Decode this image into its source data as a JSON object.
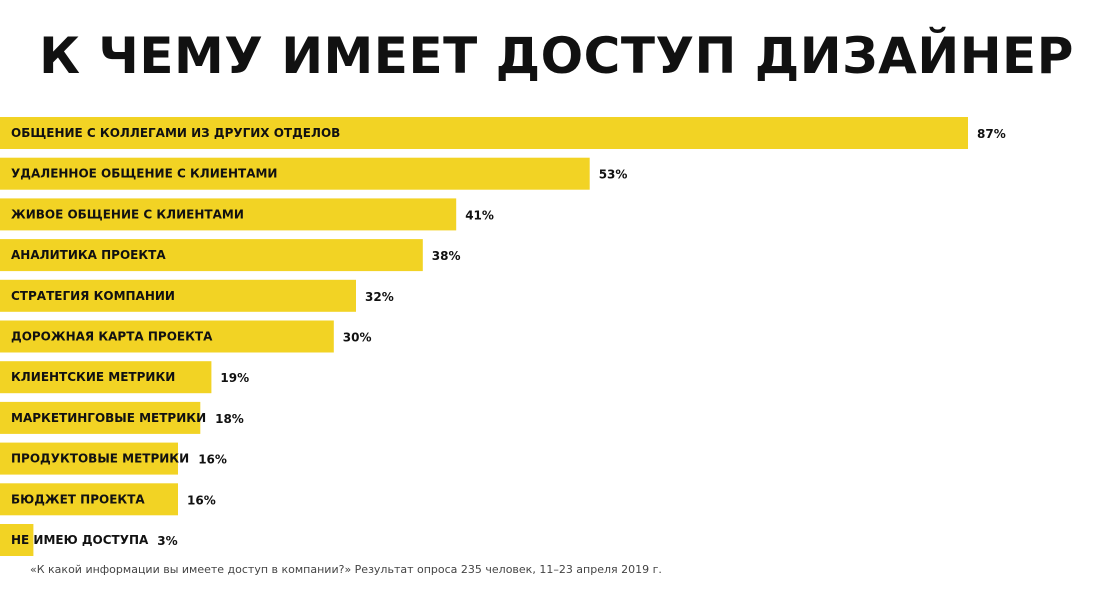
{
  "chart_data": {
    "type": "bar",
    "orientation": "horizontal",
    "title": "К ЧЕМУ ИМЕЕТ ДОСТУП ДИЗАЙНЕР",
    "categories": [
      "ОБЩЕНИЕ С КОЛЛЕГАМИ ИЗ ДРУГИХ ОТДЕЛОВ",
      "УДАЛЕННОЕ ОБЩЕНИЕ С КЛИЕНТАМИ",
      "ЖИВОЕ ОБЩЕНИЕ С КЛИЕНТАМИ",
      "АНАЛИТИКА ПРОЕКТА",
      "СТРАТЕГИЯ КОМПАНИИ",
      "ДОРОЖНАЯ КАРТА ПРОЕКТА",
      "КЛИЕНТСКИЕ МЕТРИКИ",
      "МАРКЕТИНГОВЫЕ МЕТРИКИ",
      "ПРОДУКТОВЫЕ МЕТРИКИ",
      "БЮДЖЕТ ПРОЕКТА",
      "НЕ ИМЕЮ ДОСТУПА"
    ],
    "values": [
      87,
      53,
      41,
      38,
      32,
      30,
      19,
      18,
      16,
      16,
      3
    ],
    "value_labels": [
      "87%",
      "53%",
      "41%",
      "38%",
      "32%",
      "30%",
      "19%",
      "18%",
      "16%",
      "16%",
      "3%"
    ],
    "unit": "%",
    "xlim": [
      0,
      100
    ],
    "xlabel": "",
    "ylabel": "",
    "grid": false,
    "legend": "none"
  },
  "colors": {
    "bar": "#F2D324",
    "text": "#111111",
    "footnote": "#444444"
  },
  "footnote": "«К какой информации вы имеете доступ в компании?» Результат опроса 235 человек, 11–23 апреля 2019 г."
}
